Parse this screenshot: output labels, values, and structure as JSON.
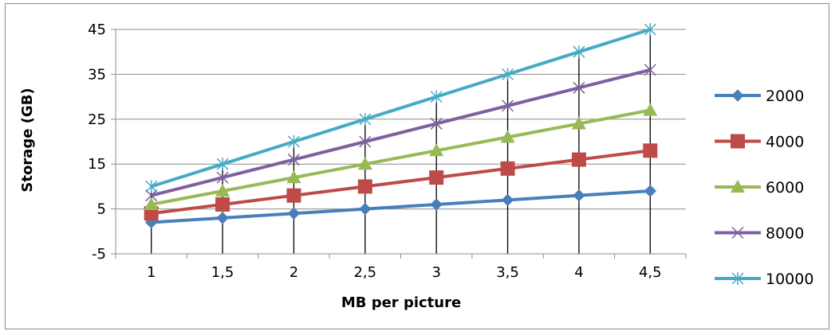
{
  "chart_data": {
    "type": "line",
    "title": "",
    "xlabel": "MB per picture",
    "ylabel": "Storage (GB)",
    "categories": [
      "1",
      "1,5",
      "2",
      "2,5",
      "3",
      "3,5",
      "4",
      "4,5"
    ],
    "y_ticks": [
      "-5",
      "5",
      "15",
      "25",
      "35",
      "45"
    ],
    "ylim": [
      -5,
      45
    ],
    "grid": "horizontal major gridlines",
    "legend_position": "right",
    "series": [
      {
        "name": "2000",
        "values": [
          2,
          3,
          4,
          5,
          6,
          7,
          8,
          9
        ],
        "color": "#4a7ebb",
        "marker": "diamond"
      },
      {
        "name": "4000",
        "values": [
          4,
          6,
          8,
          10,
          12,
          14,
          16,
          18
        ],
        "color": "#be4b48",
        "marker": "square"
      },
      {
        "name": "6000",
        "values": [
          6,
          9,
          12,
          15,
          18,
          21,
          24,
          27
        ],
        "color": "#98b954",
        "marker": "triangle"
      },
      {
        "name": "8000",
        "values": [
          8,
          12,
          16,
          20,
          24,
          28,
          32,
          36
        ],
        "color": "#7d60a0",
        "marker": "x"
      },
      {
        "name": "10000",
        "values": [
          10,
          15,
          20,
          25,
          30,
          35,
          40,
          45
        ],
        "color": "#46aac5",
        "marker": "star"
      }
    ],
    "drop_lines": true
  }
}
